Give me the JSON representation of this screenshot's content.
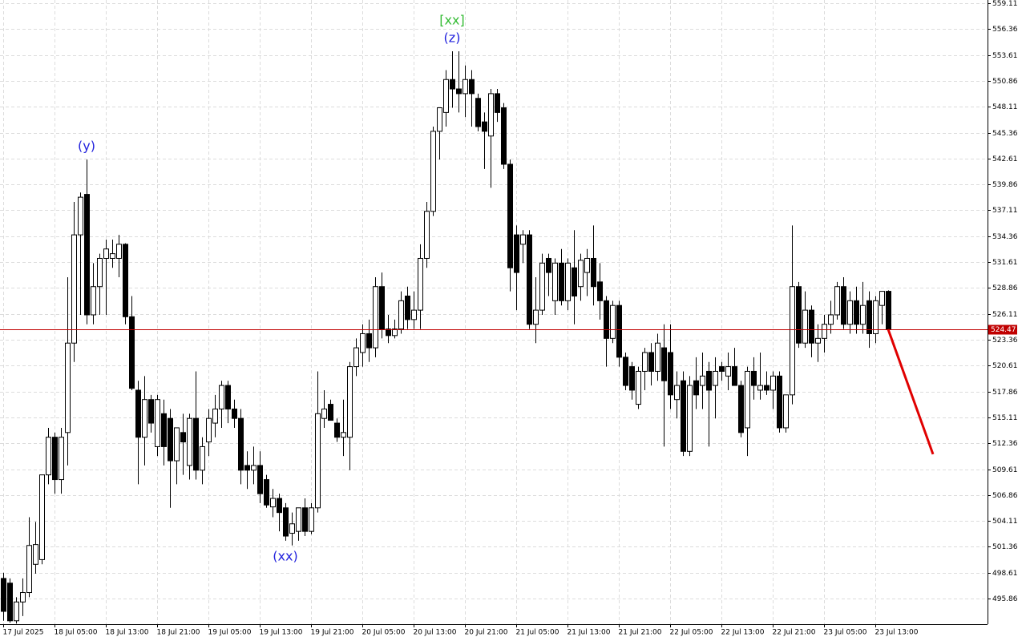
{
  "chart_data": {
    "type": "candlestick",
    "open": [
      498.0,
      497.5,
      493.5,
      495.5,
      496.5,
      499.5,
      500,
      509,
      513,
      508.5,
      513.5,
      523,
      534.5,
      538.8,
      526,
      529,
      532,
      532,
      532,
      533.5,
      525.8,
      518,
      513,
      517,
      512,
      515.5,
      515,
      510.5,
      513.5,
      510,
      515,
      509.5,
      512.5,
      514.5,
      516,
      518.5,
      516,
      515,
      510,
      509.5,
      510,
      508.5,
      505.6,
      506.5,
      505.5,
      502.8,
      503,
      505.5,
      503,
      505.5,
      515,
      516.5,
      514.5,
      513,
      513,
      520.5,
      522,
      524,
      522.5,
      529,
      524.5,
      523.8,
      524.5,
      528,
      525.5,
      526.5,
      532,
      537,
      545.5,
      547.5,
      551,
      550,
      549.5,
      551,
      549,
      546.5,
      545,
      549.5,
      548,
      542,
      534.5,
      533.5,
      534.5,
      525,
      526.5,
      532,
      527.5,
      531.5,
      527.5,
      531,
      529,
      530.5,
      532,
      529.5,
      527.5,
      523.5,
      527,
      521.5,
      520.5,
      516.5,
      520,
      522,
      520,
      522.5,
      522,
      517,
      519,
      511.5,
      519,
      518.5,
      520,
      518.5,
      520.5,
      519.5,
      520.5,
      518.5,
      514,
      520,
      518,
      518.5,
      518,
      519.5,
      514,
      517.5,
      529,
      523,
      526.5,
      523,
      523.5,
      525,
      526,
      529,
      525,
      527.5,
      525,
      527.5,
      524,
      527,
      528.5
    ],
    "high": [
      498.6,
      498.0,
      496,
      498,
      504.5,
      504,
      509,
      514,
      513.5,
      514,
      530,
      538,
      539,
      542.5,
      531.5,
      532.5,
      534,
      534,
      534.5,
      533.6,
      528,
      519,
      519.5,
      517.5,
      517.5,
      517,
      516,
      514,
      515.5,
      515.5,
      520,
      513,
      516,
      517.5,
      519,
      519,
      517,
      516,
      511.5,
      512,
      511.5,
      509,
      507.5,
      507,
      506,
      505,
      505.5,
      506.5,
      506,
      520,
      518,
      517,
      515,
      517,
      521,
      523.5,
      525,
      525.5,
      530,
      530.5,
      526,
      525.5,
      528.5,
      529,
      528.5,
      533.5,
      538,
      546,
      548,
      552,
      554,
      554,
      552.5,
      552,
      549.5,
      547.5,
      550,
      550,
      548.5,
      542.5,
      535.5,
      535,
      535,
      530,
      532.5,
      532.5,
      532,
      533,
      532,
      535,
      532.5,
      533,
      535.5,
      531.5,
      528,
      527.5,
      527.5,
      522,
      521,
      520.5,
      522.5,
      523,
      524,
      525,
      525,
      520,
      520,
      519.5,
      521.5,
      522,
      521,
      521.5,
      521,
      522,
      522.5,
      519,
      520.5,
      521.5,
      522,
      520,
      520,
      520,
      517.5,
      535.5,
      529.5,
      528.5,
      527,
      525,
      526,
      527.5,
      529.5,
      530,
      528.5,
      529,
      529.5,
      528.5,
      528,
      528.5,
      528.6
    ],
    "low": [
      493.5,
      493.3,
      493.2,
      494,
      496,
      498.5,
      499.5,
      508,
      507,
      507,
      510,
      521,
      526,
      525,
      525,
      526,
      526,
      531,
      530,
      525,
      518,
      508,
      510,
      513.5,
      511,
      510,
      505.5,
      508,
      509,
      508.5,
      508.5,
      508,
      511,
      513,
      514,
      514.5,
      514,
      508,
      507.5,
      508,
      506,
      505.5,
      504.5,
      503,
      502,
      501.5,
      502,
      502.5,
      502.7,
      505,
      514,
      515,
      512.5,
      511,
      509.5,
      519.5,
      520.5,
      521,
      521.5,
      523.5,
      523,
      523.5,
      524,
      524.5,
      524.5,
      524.5,
      531,
      536.5,
      542.5,
      546,
      548,
      547.5,
      547,
      546,
      545.5,
      541.5,
      539.5,
      546.5,
      541.5,
      528.5,
      526.5,
      531.5,
      524.5,
      523,
      526,
      528,
      526,
      527,
      526.5,
      525,
      527.5,
      528,
      527,
      525.5,
      520.5,
      523,
      520.5,
      518,
      517,
      516,
      518,
      518.5,
      519,
      512,
      516,
      515,
      511,
      511,
      516,
      516,
      512,
      515,
      519,
      518,
      518.5,
      513,
      511,
      517,
      517,
      517.5,
      516,
      513.5,
      513.5,
      516.5,
      522.5,
      522.5,
      521.5,
      521,
      522,
      524,
      525.5,
      524.5,
      524,
      524,
      524,
      522.5,
      523,
      525,
      524.4
    ],
    "close": [
      494.5,
      493.5,
      495.5,
      496.5,
      501.5,
      501.6,
      509,
      513,
      508.5,
      513,
      523,
      534.5,
      538.5,
      526,
      529,
      532,
      533,
      532.5,
      533.5,
      525.8,
      518.2,
      513,
      517,
      514.5,
      517,
      512,
      510.5,
      514,
      512.5,
      515,
      509.5,
      512,
      515,
      516,
      518.5,
      516,
      515,
      509.5,
      509.5,
      510,
      507,
      505.8,
      506.5,
      505,
      502.5,
      503.8,
      505.5,
      503,
      505.5,
      515.5,
      516,
      514.8,
      513,
      513.5,
      520.5,
      522.5,
      524,
      522.5,
      529,
      524.5,
      523.8,
      524.5,
      527.5,
      525.5,
      526.5,
      532,
      537,
      545.5,
      548,
      551,
      550,
      549.5,
      551,
      549.5,
      546,
      545.5,
      549.5,
      547.5,
      542,
      531,
      530.5,
      534.5,
      525,
      526.5,
      531.5,
      530.5,
      531.5,
      527.5,
      531.5,
      528,
      531.8,
      532,
      529,
      527.5,
      523.5,
      527,
      521.5,
      518.5,
      518,
      520,
      522,
      520,
      523,
      519,
      517.5,
      518.5,
      511.5,
      518.5,
      517.5,
      519.5,
      518,
      520,
      520,
      520.5,
      518.5,
      513.5,
      520,
      518.5,
      518.5,
      518,
      519.5,
      514,
      517.5,
      529,
      523,
      526.5,
      523,
      523.5,
      525,
      526,
      529,
      525,
      527.5,
      525,
      527,
      524,
      527.5,
      528.5,
      524.47
    ],
    "up_color": "#ffffff",
    "down_color": "#000000",
    "wick_color": "#000000",
    "xlim": [
      -0.5,
      153.5
    ],
    "xticks": [
      {
        "value": 0,
        "label": "17 Jul 2025"
      },
      {
        "value": 8,
        "label": "18 Jul 05:00"
      },
      {
        "value": 16,
        "label": "18 Jul 13:00"
      },
      {
        "value": 24,
        "label": "18 Jul 21:00"
      },
      {
        "value": 32,
        "label": "19 Jul 05:00"
      },
      {
        "value": 40,
        "label": "19 Jul 13:00"
      },
      {
        "value": 48,
        "label": "19 Jul 21:00"
      },
      {
        "value": 56,
        "label": "20 Jul 05:00"
      },
      {
        "value": 64,
        "label": "20 Jul 13:00"
      },
      {
        "value": 72,
        "label": "20 Jul 21:00"
      },
      {
        "value": 80,
        "label": "21 Jul 05:00"
      },
      {
        "value": 88,
        "label": "21 Jul 13:00"
      },
      {
        "value": 96,
        "label": "21 Jul 21:00"
      },
      {
        "value": 104,
        "label": "22 Jul 05:00"
      },
      {
        "value": 112,
        "label": "22 Jul 13:00"
      },
      {
        "value": 120,
        "label": "22 Jul 21:00"
      },
      {
        "value": 128,
        "label": "23 Jul 05:00"
      },
      {
        "value": 136,
        "label": "23 Jul 13:00"
      }
    ],
    "ylim": [
      493.14,
      559.45
    ],
    "yticks": [
      559.11,
      556.36,
      553.61,
      550.86,
      548.11,
      545.36,
      542.61,
      539.86,
      537.11,
      534.36,
      531.61,
      528.86,
      526.11,
      523.36,
      520.61,
      517.86,
      515.11,
      512.36,
      509.61,
      506.86,
      504.11,
      501.36,
      498.61,
      495.86
    ],
    "grid": true,
    "current_price": 524.47,
    "current_price_color": "#c00000",
    "projection": {
      "color": "#e00000",
      "x": [
        138,
        145
      ],
      "values": [
        524.47,
        511.2
      ]
    },
    "annotations": [
      {
        "text": "(y)",
        "index": 13,
        "position": "above",
        "color": "#2222dd"
      },
      {
        "text": "[xx]",
        "index": 70,
        "position": "above2",
        "color": "#33bb33"
      },
      {
        "text": "(z)",
        "index": 70,
        "position": "above",
        "color": "#2222dd"
      },
      {
        "text": "(xx)",
        "index": 44,
        "position": "below",
        "color": "#2222dd"
      }
    ]
  }
}
